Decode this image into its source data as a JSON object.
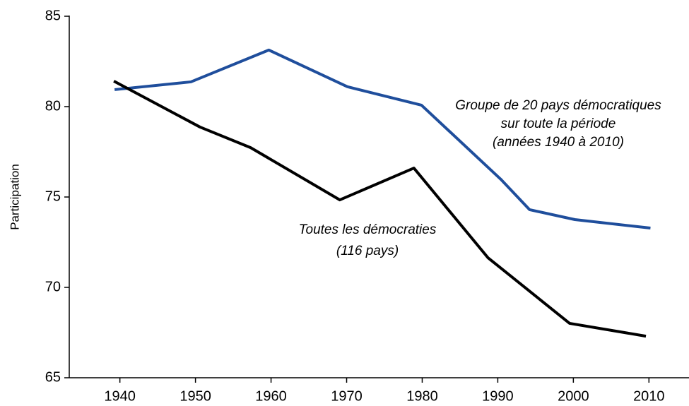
{
  "chart_data": {
    "type": "line",
    "y_label": "Participation",
    "xlim": [
      1933.3,
      2015.3
    ],
    "xticks": [
      1940,
      1950,
      1960,
      1970,
      1980,
      1990,
      2000,
      2010
    ],
    "ylim": [
      65,
      85
    ],
    "yticks": [
      65,
      70,
      75,
      80,
      85
    ],
    "grid": false,
    "series": [
      {
        "color": "#1f4e9c",
        "x": [
          1939.3,
          1949.4,
          1959.7,
          1970.1,
          1979.9,
          1990.4,
          1994.2,
          2000.2,
          2010.2
        ],
        "values": [
          80.94,
          81.37,
          83.13,
          81.1,
          80.08,
          75.98,
          74.3,
          73.75,
          73.28
        ]
      },
      {
        "color": "#000000",
        "x": [
          1939.2,
          1950.6,
          1957.3,
          1969.1,
          1978.9,
          1988.7,
          1999.5,
          2009.6
        ],
        "values": [
          81.41,
          78.87,
          77.73,
          74.84,
          76.6,
          71.64,
          68.01,
          67.3
        ]
      }
    ],
    "annotations": [
      {
        "lines": [
          "Groupe de 20 pays démocratiques",
          "sur toute la période",
          "(années 1940 à 2010)"
        ]
      },
      {
        "lines": [
          "Toutes les démocraties",
          "(116 pays)"
        ]
      }
    ]
  }
}
